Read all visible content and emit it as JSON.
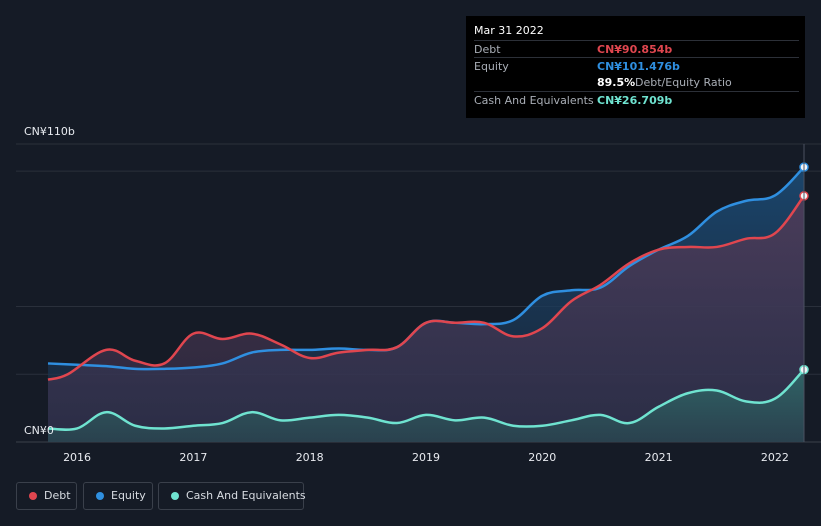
{
  "colors": {
    "background": "#151b26",
    "debt": "#e0464f",
    "equity": "#2f8fe0",
    "cash": "#6fe3d0",
    "grid": "#2a303b",
    "axis_text": "#e8ebf0"
  },
  "tooltip": {
    "date": "Mar 31 2022",
    "debt_label": "Debt",
    "debt_value": "CN¥90.854b",
    "equity_label": "Equity",
    "equity_value": "CN¥101.476b",
    "ratio_value": "89.5%",
    "ratio_label": "Debt/Equity Ratio",
    "cash_label": "Cash And Equivalents",
    "cash_value": "CN¥26.709b"
  },
  "legend": {
    "debt": "Debt",
    "equity": "Equity",
    "cash": "Cash And Equivalents"
  },
  "chart_data": {
    "type": "area",
    "y_top_label": "CN¥110b",
    "y_bottom_label": "CN¥0",
    "ylim": [
      0,
      110
    ],
    "xlim": [
      2015.75,
      2022.25
    ],
    "x_ticks": [
      "2016",
      "2017",
      "2018",
      "2019",
      "2020",
      "2021",
      "2022"
    ],
    "x_tick_values": [
      2016,
      2017,
      2018,
      2019,
      2020,
      2021,
      2022
    ],
    "grid": true,
    "legend_position": "bottom-left",
    "series": [
      {
        "name": "Debt",
        "color_key": "debt",
        "points": [
          [
            2015.75,
            23
          ],
          [
            2015.92,
            25
          ],
          [
            2016.25,
            34
          ],
          [
            2016.5,
            30
          ],
          [
            2016.75,
            29
          ],
          [
            2017.0,
            40
          ],
          [
            2017.25,
            38
          ],
          [
            2017.5,
            40
          ],
          [
            2017.75,
            36
          ],
          [
            2018.0,
            31
          ],
          [
            2018.25,
            33
          ],
          [
            2018.5,
            34
          ],
          [
            2018.75,
            35
          ],
          [
            2019.0,
            44
          ],
          [
            2019.25,
            44
          ],
          [
            2019.5,
            44
          ],
          [
            2019.75,
            39
          ],
          [
            2020.0,
            42
          ],
          [
            2020.25,
            52
          ],
          [
            2020.5,
            58
          ],
          [
            2020.75,
            66
          ],
          [
            2021.0,
            71
          ],
          [
            2021.25,
            72
          ],
          [
            2021.5,
            72
          ],
          [
            2021.75,
            75
          ],
          [
            2022.0,
            77
          ],
          [
            2022.25,
            90.854
          ]
        ]
      },
      {
        "name": "Equity",
        "color_key": "equity",
        "points": [
          [
            2015.75,
            29
          ],
          [
            2016.0,
            28.5
          ],
          [
            2016.25,
            28
          ],
          [
            2016.5,
            27
          ],
          [
            2016.75,
            27
          ],
          [
            2017.0,
            27.5
          ],
          [
            2017.25,
            29
          ],
          [
            2017.5,
            33
          ],
          [
            2017.75,
            34
          ],
          [
            2018.0,
            34
          ],
          [
            2018.25,
            34.5
          ],
          [
            2018.5,
            34
          ],
          [
            2018.75,
            35
          ],
          [
            2019.0,
            44
          ],
          [
            2019.25,
            44
          ],
          [
            2019.5,
            43.5
          ],
          [
            2019.75,
            45
          ],
          [
            2020.0,
            54
          ],
          [
            2020.25,
            56
          ],
          [
            2020.5,
            57
          ],
          [
            2020.75,
            65
          ],
          [
            2021.0,
            71
          ],
          [
            2021.25,
            76
          ],
          [
            2021.5,
            85
          ],
          [
            2021.75,
            89
          ],
          [
            2022.0,
            91
          ],
          [
            2022.25,
            101.476
          ]
        ]
      },
      {
        "name": "Cash And Equivalents",
        "color_key": "cash",
        "points": [
          [
            2015.75,
            5
          ],
          [
            2016.0,
            5
          ],
          [
            2016.25,
            11
          ],
          [
            2016.5,
            6
          ],
          [
            2016.75,
            5
          ],
          [
            2017.0,
            6
          ],
          [
            2017.25,
            7
          ],
          [
            2017.5,
            11
          ],
          [
            2017.75,
            8
          ],
          [
            2018.0,
            9
          ],
          [
            2018.25,
            10
          ],
          [
            2018.5,
            9
          ],
          [
            2018.75,
            7
          ],
          [
            2019.0,
            10
          ],
          [
            2019.25,
            8
          ],
          [
            2019.5,
            9
          ],
          [
            2019.75,
            6
          ],
          [
            2020.0,
            6
          ],
          [
            2020.25,
            8
          ],
          [
            2020.5,
            10
          ],
          [
            2020.75,
            7
          ],
          [
            2021.0,
            13
          ],
          [
            2021.25,
            18
          ],
          [
            2021.5,
            19
          ],
          [
            2021.75,
            15
          ],
          [
            2022.0,
            16
          ],
          [
            2022.25,
            26.709
          ]
        ]
      }
    ]
  }
}
